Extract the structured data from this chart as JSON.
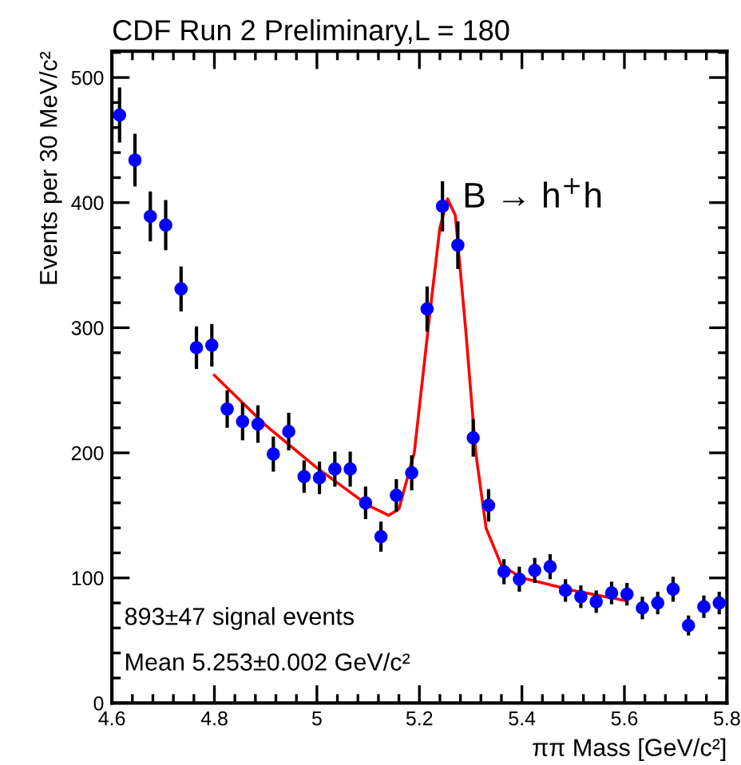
{
  "chart_data": {
    "type": "scatter",
    "title": "CDF Run 2 Preliminary,L = 180",
    "xlabel": "ππ Mass [GeV/c²]",
    "ylabel": "Events per 30 MeV/c²",
    "annotations": [
      "893±47 signal events",
      "Mean 5.253±0.002 GeV/c²",
      "B → h$^{+}$h"
    ],
    "xlim": [
      4.6,
      5.8
    ],
    "xticks": [
      4.6,
      4.8,
      5,
      5.2,
      5.4,
      5.6,
      5.8
    ],
    "ylim": [
      0,
      521
    ],
    "yticks": [
      0,
      100,
      200,
      300,
      400,
      500
    ],
    "grid": false,
    "legend": false,
    "series": [
      {
        "color": "#0000ff",
        "marker": "circle",
        "x": [
          4.615,
          4.645,
          4.675,
          4.705,
          4.735,
          4.765,
          4.795,
          4.825,
          4.855,
          4.885,
          4.915,
          4.945,
          4.975,
          5.005,
          5.035,
          5.065,
          5.095,
          5.125,
          5.155,
          5.185,
          5.215,
          5.245,
          5.275,
          5.305,
          5.335,
          5.365,
          5.395,
          5.425,
          5.455,
          5.485,
          5.515,
          5.545,
          5.575,
          5.605,
          5.635,
          5.665,
          5.695,
          5.725,
          5.755,
          5.785
        ],
        "values": [
          470,
          434,
          389,
          382,
          331,
          284,
          286,
          235,
          225,
          223,
          199,
          217,
          181,
          180,
          187,
          187,
          160,
          133,
          166,
          184,
          315,
          397,
          366,
          212,
          158,
          105,
          99,
          106,
          109,
          90,
          85,
          81,
          88,
          87,
          76,
          80,
          91,
          62,
          77,
          80
        ],
        "errors": [
          22,
          21,
          20,
          20,
          18,
          17,
          17,
          15,
          15,
          15,
          14,
          15,
          13,
          13,
          14,
          14,
          13,
          12,
          13,
          14,
          18,
          20,
          19,
          15,
          13,
          10,
          10,
          10,
          10,
          9,
          9,
          9,
          9,
          9,
          9,
          9,
          10,
          8,
          9,
          9
        ]
      },
      {
        "type": "line",
        "color": "#ff0000",
        "marker": "none",
        "line_style": "solid",
        "x": [
          4.8,
          4.9,
          5.0,
          5.1,
          5.14,
          5.16,
          5.19,
          5.22,
          5.24,
          5.255,
          5.27,
          5.29,
          5.31,
          5.33,
          5.36,
          5.4,
          5.45,
          5.5,
          5.6
        ],
        "values": [
          262,
          222,
          188,
          158,
          150,
          155,
          200,
          310,
          380,
          403,
          390,
          300,
          200,
          140,
          110,
          100,
          95,
          90,
          82
        ]
      }
    ]
  }
}
